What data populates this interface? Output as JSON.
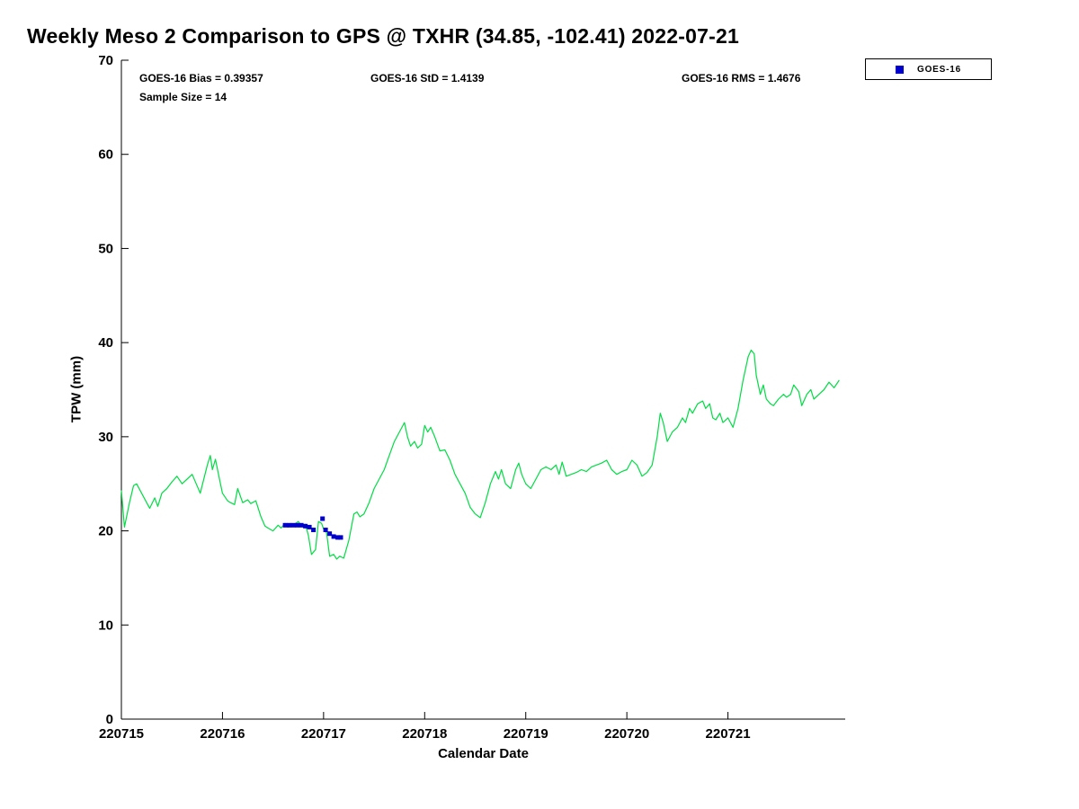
{
  "chart_data": {
    "type": "line",
    "title": "Weekly Meso 2 Comparison to GPS @ TXHR (34.85, -102.41) 2022-07-21",
    "xlabel": "Calendar Date",
    "ylabel": "TPW (mm)",
    "xlim": [
      220715,
      220722.16
    ],
    "ylim": [
      0,
      70
    ],
    "x_ticks": [
      220715,
      220716,
      220717,
      220718,
      220719,
      220720,
      220721
    ],
    "y_ticks": [
      0,
      10,
      20,
      30,
      40,
      50,
      60,
      70
    ],
    "grid": false,
    "legend": {
      "label": "GOES-16",
      "position": "top-right"
    },
    "stats": {
      "bias": "GOES-16 Bias = 0.39357",
      "std": "GOES-16 StD = 1.4139",
      "rms": "GOES-16 RMS = 1.4676",
      "sample_size": "Sample Size = 14"
    },
    "series": [
      {
        "name": "GPS",
        "type": "line",
        "color": "#00dd44",
        "x": [
          220715.0,
          220715.03,
          220715.08,
          220715.12,
          220715.15,
          220715.2,
          220715.25,
          220715.28,
          220715.33,
          220715.36,
          220715.4,
          220715.45,
          220715.5,
          220715.55,
          220715.6,
          220715.65,
          220715.7,
          220715.78,
          220715.85,
          220715.88,
          220715.9,
          220715.93,
          220715.97,
          220716.0,
          220716.05,
          220716.08,
          220716.12,
          220716.15,
          220716.2,
          220716.25,
          220716.28,
          220716.33,
          220716.38,
          220716.42,
          220716.45,
          220716.5,
          220716.55,
          220716.58,
          220716.62,
          220716.65,
          220716.7,
          220716.75,
          220716.78,
          220716.82,
          220716.85,
          220716.88,
          220716.92,
          220716.95,
          220716.98,
          220717.0,
          220717.03,
          220717.06,
          220717.1,
          220717.13,
          220717.16,
          220717.2,
          220717.25,
          220717.3,
          220717.33,
          220717.36,
          220717.4,
          220717.45,
          220717.5,
          220717.55,
          220717.6,
          220717.65,
          220717.7,
          220717.75,
          220717.8,
          220717.83,
          220717.86,
          220717.9,
          220717.93,
          220717.97,
          220718.0,
          220718.03,
          220718.06,
          220718.1,
          220718.15,
          220718.2,
          220718.25,
          220718.3,
          220718.35,
          220718.4,
          220718.45,
          220718.5,
          220718.55,
          220718.6,
          220718.65,
          220718.7,
          220718.73,
          220718.76,
          220718.8,
          220718.85,
          220718.9,
          220718.93,
          220718.96,
          220719.0,
          220719.05,
          220719.1,
          220719.15,
          220719.2,
          220719.25,
          220719.3,
          220719.33,
          220719.36,
          220719.4,
          220719.45,
          220719.5,
          220719.55,
          220719.6,
          220719.65,
          220719.7,
          220719.75,
          220719.8,
          220719.85,
          220719.9,
          220719.95,
          220720.0,
          220720.05,
          220720.1,
          220720.15,
          220720.2,
          220720.25,
          220720.3,
          220720.33,
          220720.36,
          220720.4,
          220720.45,
          220720.5,
          220720.55,
          220720.58,
          220720.62,
          220720.65,
          220720.7,
          220720.75,
          220720.78,
          220720.82,
          220720.85,
          220720.88,
          220720.92,
          220720.95,
          220721.0,
          220721.05,
          220721.1,
          220721.15,
          220721.2,
          220721.23,
          220721.26,
          220721.28,
          220721.32,
          220721.35,
          220721.38,
          220721.42,
          220721.45,
          220721.5,
          220721.55,
          220721.58,
          220721.62,
          220721.65,
          220721.7,
          220721.73,
          220721.78,
          220721.82,
          220721.85,
          220721.9,
          220721.95,
          220722.0,
          220722.05,
          220722.1
        ],
        "y": [
          24.3,
          20.4,
          23.0,
          24.8,
          25.0,
          24.0,
          23.0,
          22.4,
          23.5,
          22.6,
          24.0,
          24.5,
          25.2,
          25.8,
          25.0,
          25.5,
          26.0,
          24.0,
          27.0,
          28.0,
          26.5,
          27.6,
          25.5,
          24.0,
          23.2,
          23.0,
          22.8,
          24.5,
          23.0,
          23.3,
          22.9,
          23.2,
          21.5,
          20.5,
          20.3,
          20.0,
          20.6,
          20.3,
          20.8,
          20.4,
          20.6,
          21.0,
          20.5,
          20.7,
          19.5,
          17.5,
          18.0,
          21.0,
          20.8,
          20.2,
          19.8,
          17.3,
          17.5,
          17.0,
          17.3,
          17.1,
          19.0,
          21.8,
          22.0,
          21.5,
          21.8,
          23.0,
          24.5,
          25.5,
          26.5,
          28.0,
          29.5,
          30.5,
          31.5,
          30.0,
          29.0,
          29.5,
          28.8,
          29.2,
          31.2,
          30.5,
          31.0,
          30.0,
          28.5,
          28.6,
          27.5,
          26.0,
          25.0,
          24.0,
          22.5,
          21.8,
          21.4,
          23.0,
          25.0,
          26.3,
          25.5,
          26.5,
          25.0,
          24.5,
          26.5,
          27.2,
          26.0,
          25.0,
          24.5,
          25.5,
          26.5,
          26.8,
          26.5,
          27.0,
          26.0,
          27.3,
          25.8,
          26.0,
          26.2,
          26.5,
          26.3,
          26.8,
          27.0,
          27.2,
          27.5,
          26.5,
          26.0,
          26.3,
          26.5,
          27.5,
          27.0,
          25.8,
          26.2,
          27.0,
          30.0,
          32.5,
          31.5,
          29.5,
          30.5,
          31.0,
          32.0,
          31.5,
          33.0,
          32.5,
          33.5,
          33.8,
          33.0,
          33.5,
          32.0,
          31.8,
          32.5,
          31.5,
          32.0,
          31.0,
          33.0,
          36.0,
          38.5,
          39.2,
          38.8,
          36.5,
          34.5,
          35.5,
          34.0,
          33.5,
          33.3,
          34.0,
          34.5,
          34.2,
          34.5,
          35.5,
          34.8,
          33.3,
          34.5,
          35.0,
          34.0,
          34.5,
          35.0,
          35.8,
          35.2,
          36.0
        ]
      },
      {
        "name": "GOES-16",
        "type": "scatter",
        "marker": "square",
        "color": "#0000cc",
        "x": [
          220716.62,
          220716.66,
          220716.7,
          220716.74,
          220716.78,
          220716.82,
          220716.86,
          220716.9,
          220716.99,
          220717.02,
          220717.06,
          220717.1,
          220717.14,
          220717.17
        ],
        "y": [
          20.6,
          20.6,
          20.6,
          20.6,
          20.6,
          20.5,
          20.4,
          20.1,
          21.3,
          20.1,
          19.7,
          19.4,
          19.3,
          19.3
        ]
      }
    ]
  }
}
